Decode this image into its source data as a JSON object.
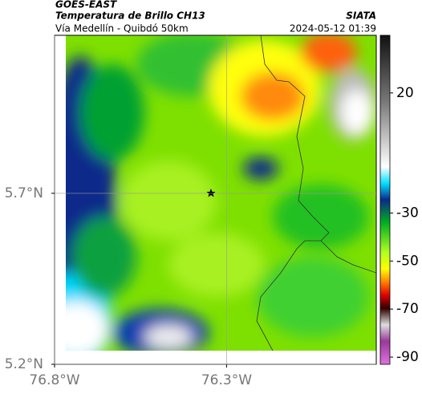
{
  "header": {
    "title": "GOES-EAST",
    "subtitle": "Temperatura de Brillo CH13",
    "source": "SIATA",
    "route": "Vía Medellín - Quibdó 50km",
    "timestamp": "2024-05-12 01:39"
  },
  "map": {
    "xlim": [
      -76.8,
      -75.865
    ],
    "ylim": [
      5.2,
      6.162
    ],
    "xticks": [
      {
        "value": -76.8,
        "label": "76.8°W"
      },
      {
        "value": -76.3,
        "label": "76.3°W"
      }
    ],
    "yticks": [
      {
        "value": 5.7,
        "label": "5.7°N"
      },
      {
        "value": 5.2,
        "label": "5.2°N"
      }
    ]
  },
  "colorbar": {
    "lim": [
      -93,
      44
    ],
    "ticks": [
      20,
      -30,
      -50,
      -70,
      -90
    ]
  }
}
